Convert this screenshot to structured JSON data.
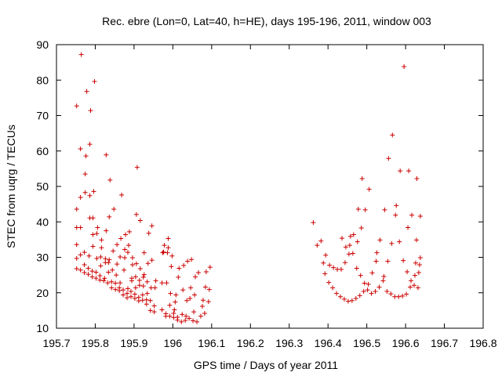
{
  "chart_data": {
    "type": "scatter",
    "title": "Rec. ebre (Lon=0, Lat=40, h=HE), days 195-196, 2011, window 003",
    "xlabel": "GPS time / Days of year 2011",
    "ylabel": "STEC from uqrg / TECUs",
    "xlim": [
      195.7,
      196.8
    ],
    "ylim": [
      10,
      90
    ],
    "xticks": [
      195.7,
      195.8,
      195.9,
      196,
      196.1,
      196.2,
      196.3,
      196.4,
      196.5,
      196.6,
      196.7,
      196.8
    ],
    "xtick_labels": [
      "195.7",
      "195.8",
      "195.9",
      "196",
      "196.1",
      "196.2",
      "196.3",
      "196.4",
      "196.5",
      "196.6",
      "196.7",
      "196.8"
    ],
    "yticks": [
      10,
      20,
      30,
      40,
      50,
      60,
      70,
      80,
      90
    ],
    "ytick_labels": [
      "10",
      "20",
      "30",
      "40",
      "50",
      "60",
      "70",
      "80",
      "90"
    ],
    "grid": false,
    "marker_color": "#cc0000",
    "marker": "+",
    "series": [
      {
        "name": "",
        "points": [
          [
            195.752,
            26.8
          ],
          [
            195.752,
            29.7
          ],
          [
            195.752,
            33.6
          ],
          [
            195.752,
            38.4
          ],
          [
            195.752,
            43.6
          ],
          [
            195.752,
            72.7
          ],
          [
            195.762,
            26.4
          ],
          [
            195.762,
            30.7
          ],
          [
            195.762,
            38.4
          ],
          [
            195.762,
            46.9
          ],
          [
            195.762,
            60.6
          ],
          [
            195.764,
            87.2
          ],
          [
            195.772,
            25.7
          ],
          [
            195.772,
            27.9
          ],
          [
            195.772,
            31.4
          ],
          [
            195.774,
            48.3
          ],
          [
            195.774,
            53.5
          ],
          [
            195.776,
            58.6
          ],
          [
            195.778,
            76.8
          ],
          [
            195.782,
            25.2
          ],
          [
            195.782,
            26.9
          ],
          [
            195.784,
            30.4
          ],
          [
            195.786,
            41.1
          ],
          [
            195.786,
            47.4
          ],
          [
            195.786,
            61.9
          ],
          [
            195.788,
            71.4
          ],
          [
            195.792,
            24.5
          ],
          [
            195.792,
            26.1
          ],
          [
            195.794,
            33.1
          ],
          [
            195.794,
            36.4
          ],
          [
            195.794,
            41.1
          ],
          [
            195.796,
            48.6
          ],
          [
            195.798,
            79.6
          ],
          [
            195.802,
            24.1
          ],
          [
            195.802,
            25.8
          ],
          [
            195.804,
            29.7
          ],
          [
            195.804,
            36.7
          ],
          [
            195.806,
            38.4
          ],
          [
            195.812,
            23.6
          ],
          [
            195.812,
            24.8
          ],
          [
            195.814,
            27.6
          ],
          [
            195.814,
            30.1
          ],
          [
            195.816,
            32.7
          ],
          [
            195.816,
            34.9
          ],
          [
            195.822,
            23.4
          ],
          [
            195.824,
            24.1
          ],
          [
            195.826,
            28.5
          ],
          [
            195.826,
            29.6
          ],
          [
            195.828,
            37.5
          ],
          [
            195.828,
            58.9
          ],
          [
            195.832,
            22.8
          ],
          [
            195.834,
            25.8
          ],
          [
            195.834,
            28.5
          ],
          [
            195.836,
            29.3
          ],
          [
            195.836,
            41.4
          ],
          [
            195.838,
            51.8
          ],
          [
            195.842,
            21.4
          ],
          [
            195.842,
            23.1
          ],
          [
            195.844,
            26.4
          ],
          [
            195.846,
            31.8
          ],
          [
            195.848,
            43.6
          ],
          [
            195.852,
            20.9
          ],
          [
            195.852,
            22.7
          ],
          [
            195.854,
            25.0
          ],
          [
            195.856,
            28.1
          ],
          [
            195.856,
            33.6
          ],
          [
            195.862,
            20.6
          ],
          [
            195.862,
            21.4
          ],
          [
            195.864,
            22.8
          ],
          [
            195.864,
            30.1
          ],
          [
            195.866,
            35.3
          ],
          [
            195.868,
            47.6
          ],
          [
            195.872,
            19.4
          ],
          [
            195.872,
            20.8
          ],
          [
            195.874,
            26.4
          ],
          [
            195.876,
            29.9
          ],
          [
            195.876,
            32.2
          ],
          [
            195.878,
            36.4
          ],
          [
            195.882,
            18.6
          ],
          [
            195.882,
            19.8
          ],
          [
            195.884,
            21.2
          ],
          [
            195.884,
            31.4
          ],
          [
            195.886,
            33.4
          ],
          [
            195.888,
            37.2
          ],
          [
            195.892,
            18.9
          ],
          [
            195.892,
            20.4
          ],
          [
            195.894,
            23.4
          ],
          [
            195.894,
            24.1
          ],
          [
            195.896,
            27.9
          ],
          [
            195.896,
            29.9
          ],
          [
            195.902,
            18.4
          ],
          [
            195.902,
            19.6
          ],
          [
            195.904,
            21.4
          ],
          [
            195.904,
            24.5
          ],
          [
            195.906,
            28.2
          ],
          [
            195.906,
            42.1
          ],
          [
            195.908,
            55.4
          ],
          [
            195.912,
            17.7
          ],
          [
            195.912,
            18.7
          ],
          [
            195.914,
            22.1
          ],
          [
            195.914,
            23.5
          ],
          [
            195.916,
            26.8
          ],
          [
            195.916,
            40.4
          ],
          [
            195.922,
            17.9
          ],
          [
            195.922,
            19.4
          ],
          [
            195.924,
            21.9
          ],
          [
            195.924,
            24.4
          ],
          [
            195.926,
            25.1
          ],
          [
            195.926,
            31.3
          ],
          [
            195.932,
            16.8
          ],
          [
            195.932,
            18.0
          ],
          [
            195.934,
            19.8
          ],
          [
            195.934,
            23.1
          ],
          [
            195.936,
            28.3
          ],
          [
            195.938,
            36.8
          ],
          [
            195.942,
            15.0
          ],
          [
            195.942,
            17.8
          ],
          [
            195.944,
            21.4
          ],
          [
            195.946,
            29.2
          ],
          [
            195.946,
            38.9
          ],
          [
            195.952,
            14.6
          ],
          [
            195.952,
            16.3
          ],
          [
            195.954,
            21.4
          ],
          [
            195.956,
            23.4
          ],
          [
            195.972,
            15.2
          ],
          [
            195.972,
            22.8
          ],
          [
            195.974,
            31.3
          ],
          [
            195.976,
            31.5
          ],
          [
            195.978,
            33.4
          ],
          [
            195.982,
            13.4
          ],
          [
            195.982,
            14.1
          ],
          [
            195.984,
            22.8
          ],
          [
            195.986,
            31.3
          ],
          [
            195.988,
            32.7
          ],
          [
            195.988,
            35.3
          ],
          [
            195.992,
            13.4
          ],
          [
            195.992,
            16.5
          ],
          [
            195.994,
            19.8
          ],
          [
            195.996,
            27.4
          ],
          [
            195.998,
            30.4
          ],
          [
            196.002,
            13.0
          ],
          [
            196.002,
            14.2
          ],
          [
            196.004,
            15.2
          ],
          [
            196.006,
            17.4
          ],
          [
            196.008,
            19.4
          ],
          [
            196.012,
            12.3
          ],
          [
            196.012,
            13.1
          ],
          [
            196.014,
            24.4
          ],
          [
            196.016,
            26.9
          ],
          [
            196.022,
            11.8
          ],
          [
            196.024,
            13.9
          ],
          [
            196.026,
            20.8
          ],
          [
            196.028,
            27.7
          ],
          [
            196.032,
            12.2
          ],
          [
            196.034,
            13.4
          ],
          [
            196.036,
            17.8
          ],
          [
            196.038,
            28.9
          ],
          [
            196.042,
            12.8
          ],
          [
            196.044,
            18.4
          ],
          [
            196.046,
            21.4
          ],
          [
            196.048,
            29.4
          ],
          [
            196.052,
            12.1
          ],
          [
            196.054,
            14.6
          ],
          [
            196.056,
            19.4
          ],
          [
            196.058,
            24.5
          ],
          [
            196.062,
            11.8
          ],
          [
            196.066,
            25.7
          ],
          [
            196.072,
            13.4
          ],
          [
            196.076,
            16.2
          ],
          [
            196.078,
            17.9
          ],
          [
            196.082,
            14.2
          ],
          [
            196.084,
            21.6
          ],
          [
            196.086,
            25.9
          ],
          [
            196.092,
            17.5
          ],
          [
            196.094,
            20.9
          ],
          [
            196.096,
            27.2
          ],
          [
            196.362,
            39.8
          ],
          [
            196.372,
            33.4
          ],
          [
            196.382,
            34.6
          ],
          [
            196.388,
            28.4
          ],
          [
            196.392,
            25.4
          ],
          [
            196.394,
            30.6
          ],
          [
            196.402,
            22.9
          ],
          [
            196.404,
            27.8
          ],
          [
            196.412,
            21.4
          ],
          [
            196.414,
            27.1
          ],
          [
            196.422,
            19.8
          ],
          [
            196.424,
            26.6
          ],
          [
            196.432,
            18.9
          ],
          [
            196.434,
            26.6
          ],
          [
            196.436,
            35.4
          ],
          [
            196.442,
            18.2
          ],
          [
            196.444,
            28.5
          ],
          [
            196.446,
            32.9
          ],
          [
            196.452,
            17.6
          ],
          [
            196.454,
            30.9
          ],
          [
            196.456,
            33.4
          ],
          [
            196.458,
            35.9
          ],
          [
            196.462,
            17.8
          ],
          [
            196.464,
            31.1
          ],
          [
            196.466,
            36.4
          ],
          [
            196.472,
            18.4
          ],
          [
            196.474,
            26.9
          ],
          [
            196.476,
            34.4
          ],
          [
            196.478,
            43.6
          ],
          [
            196.482,
            19.2
          ],
          [
            196.484,
            24.9
          ],
          [
            196.486,
            38.3
          ],
          [
            196.488,
            52.2
          ],
          [
            196.492,
            20.4
          ],
          [
            196.494,
            22.7
          ],
          [
            196.496,
            43.4
          ],
          [
            196.502,
            20.8
          ],
          [
            196.504,
            22.4
          ],
          [
            196.506,
            49.2
          ],
          [
            196.512,
            19.8
          ],
          [
            196.514,
            25.6
          ],
          [
            196.522,
            20.4
          ],
          [
            196.524,
            28.9
          ],
          [
            196.526,
            31.3
          ],
          [
            196.532,
            21.6
          ],
          [
            196.534,
            34.9
          ],
          [
            196.542,
            23.4
          ],
          [
            196.544,
            24.6
          ],
          [
            196.546,
            43.4
          ],
          [
            196.552,
            20.4
          ],
          [
            196.554,
            28.9
          ],
          [
            196.556,
            57.9
          ],
          [
            196.562,
            19.7
          ],
          [
            196.564,
            33.9
          ],
          [
            196.566,
            64.5
          ],
          [
            196.572,
            18.9
          ],
          [
            196.574,
            41.9
          ],
          [
            196.576,
            44.6
          ],
          [
            196.582,
            18.9
          ],
          [
            196.584,
            34.4
          ],
          [
            196.586,
            54.4
          ],
          [
            196.592,
            19.1
          ],
          [
            196.594,
            29.1
          ],
          [
            196.596,
            83.8
          ],
          [
            196.602,
            19.6
          ],
          [
            196.604,
            25.9
          ],
          [
            196.606,
            38.4
          ],
          [
            196.608,
            54.4
          ],
          [
            196.612,
            21.6
          ],
          [
            196.614,
            23.4
          ],
          [
            196.616,
            41.9
          ],
          [
            196.622,
            22.1
          ],
          [
            196.624,
            24.9
          ],
          [
            196.626,
            28.4
          ],
          [
            196.628,
            34.9
          ],
          [
            196.629,
            52.2
          ],
          [
            196.632,
            21.4
          ],
          [
            196.634,
            25.7
          ],
          [
            196.636,
            27.9
          ],
          [
            196.638,
            29.9
          ],
          [
            196.638,
            41.6
          ]
        ]
      }
    ]
  }
}
